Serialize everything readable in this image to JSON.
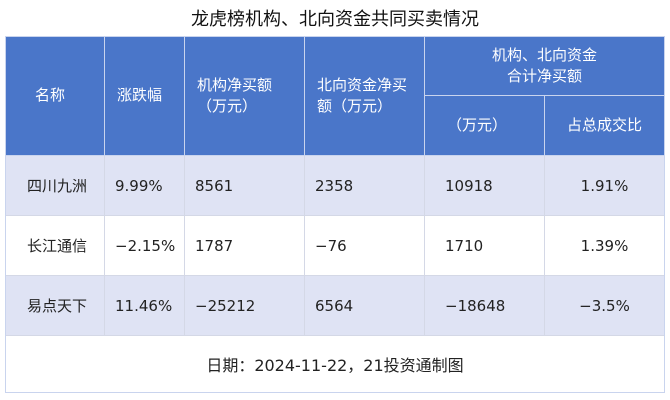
{
  "title": "龙虎榜机构、北向资金共同买卖情况",
  "table": {
    "headers": [
      "名称",
      "涨跌幅",
      "机构净买额（万元）",
      "北向资金净买额（万元）"
    ],
    "group_header": "机构、北向资金合计净买额",
    "sub_headers": [
      "（万元）",
      "占总成交比"
    ],
    "rows": [
      [
        "四川九洲",
        "9.99%",
        "8561",
        "2358",
        "10918",
        "1.91%"
      ],
      [
        "长江通信",
        "−2.15%",
        "1787",
        "−76",
        "1710",
        "1.39%"
      ],
      [
        "易点天下",
        "11.46%",
        "−25212",
        "6564",
        "−18648",
        "−3.5%"
      ]
    ]
  },
  "footer": "日期：2024-11-22，21投资通制图"
}
